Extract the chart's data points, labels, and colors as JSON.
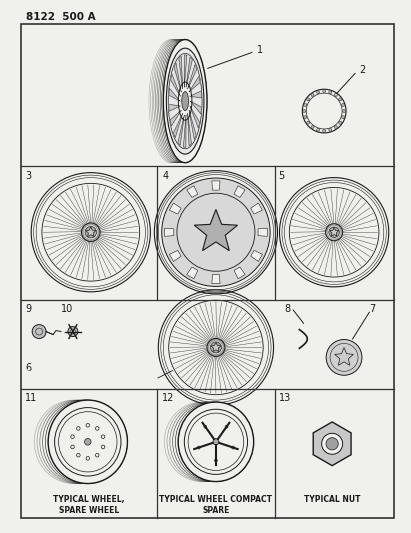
{
  "title_code": "8122  500 A",
  "bg_color": "#f0f0ec",
  "line_color": "#1a1a1a",
  "border_color": "#333333",
  "labels": {
    "11": "TYPICAL WHEEL,\nSPARE WHEEL",
    "12": "TYPICAL WHEEL COMPACT\nSPARE",
    "13": "TYPICAL NUT"
  }
}
